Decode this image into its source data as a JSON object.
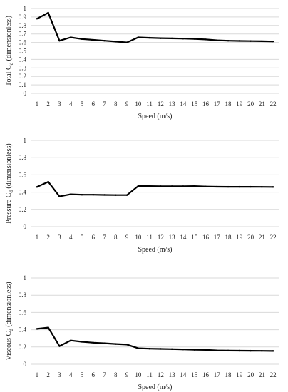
{
  "chart_data": [
    {
      "type": "line",
      "x": [
        1,
        2,
        3,
        4,
        5,
        6,
        7,
        8,
        9,
        10,
        11,
        12,
        13,
        14,
        15,
        16,
        17,
        18,
        19,
        20,
        21,
        22
      ],
      "values": [
        0.88,
        0.95,
        0.62,
        0.66,
        0.64,
        0.63,
        0.62,
        0.61,
        0.6,
        0.66,
        0.655,
        0.65,
        0.648,
        0.645,
        0.642,
        0.635,
        0.625,
        0.62,
        0.618,
        0.616,
        0.614,
        0.612
      ],
      "xlabel": "Speed (m/s)",
      "ylabel_prefix": "Total C",
      "ylabel_sub": "d",
      "ylabel_suffix": " (dimensionless)",
      "yticks": [
        "0",
        "0.1",
        "0.2",
        "0.3",
        "0.4",
        "0.5",
        "0.6",
        "0.7",
        "0.8",
        "0.9",
        "1"
      ],
      "ylim": [
        0,
        1
      ],
      "grid": true
    },
    {
      "type": "line",
      "x": [
        1,
        2,
        3,
        4,
        5,
        6,
        7,
        8,
        9,
        10,
        11,
        12,
        13,
        14,
        15,
        16,
        17,
        18,
        19,
        20,
        21,
        22
      ],
      "values": [
        0.46,
        0.52,
        0.35,
        0.375,
        0.37,
        0.37,
        0.368,
        0.366,
        0.366,
        0.47,
        0.47,
        0.468,
        0.468,
        0.468,
        0.47,
        0.465,
        0.463,
        0.462,
        0.462,
        0.462,
        0.461,
        0.46
      ],
      "xlabel": "Speed (m/s)",
      "ylabel_prefix": "Pressure C",
      "ylabel_sub": "d",
      "ylabel_suffix": " (dimensionless)",
      "yticks": [
        "0",
        "0.2",
        "0.4",
        "0.6",
        "0.8",
        "1"
      ],
      "ylim": [
        0,
        1
      ],
      "grid": true
    },
    {
      "type": "line",
      "x": [
        1,
        2,
        3,
        4,
        5,
        6,
        7,
        8,
        9,
        10,
        11,
        12,
        13,
        14,
        15,
        16,
        17,
        18,
        19,
        20,
        21,
        22
      ],
      "values": [
        0.41,
        0.425,
        0.21,
        0.275,
        0.26,
        0.25,
        0.243,
        0.235,
        0.228,
        0.185,
        0.18,
        0.178,
        0.175,
        0.172,
        0.168,
        0.166,
        0.16,
        0.158,
        0.157,
        0.156,
        0.155,
        0.154
      ],
      "xlabel": "Speed (m/s)",
      "ylabel_prefix": "Viscous C",
      "ylabel_sub": "d",
      "ylabel_suffix": " (dimensionless)",
      "yticks": [
        "0",
        "0.2",
        "0.4",
        "0.6",
        "0.8",
        "1"
      ],
      "ylim": [
        0,
        1
      ],
      "grid": true
    }
  ]
}
